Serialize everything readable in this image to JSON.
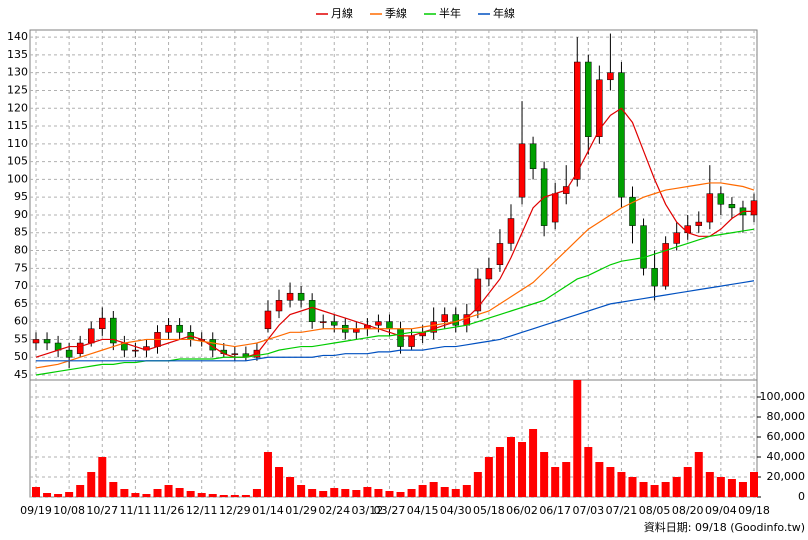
{
  "chart_data": [
    {
      "type": "candlestick",
      "up_color": "#ff0000",
      "down_color": "#00a000",
      "legend": "top",
      "grid": true,
      "ylim": [
        43.6,
        142
      ],
      "yticks": [
        45,
        50,
        55,
        60,
        65,
        70,
        75,
        80,
        85,
        90,
        95,
        100,
        105,
        110,
        115,
        120,
        125,
        130,
        135,
        140
      ],
      "open": [
        54,
        55,
        54,
        52,
        51,
        54,
        58,
        61,
        54,
        52,
        52,
        53,
        57,
        59,
        57,
        55,
        55,
        52,
        51,
        51,
        50,
        58,
        63,
        66,
        68,
        66,
        60,
        60,
        59,
        57,
        58,
        59,
        60,
        58,
        53,
        56,
        57,
        60,
        62,
        59,
        63,
        72,
        76,
        82,
        95,
        110,
        103,
        88,
        96,
        100,
        133,
        112,
        128,
        130,
        95,
        87,
        75,
        70,
        82,
        85,
        87,
        88,
        96,
        93,
        92,
        90
      ],
      "high": [
        57,
        57,
        56,
        54,
        56,
        60,
        64,
        63,
        56,
        54,
        55,
        59,
        61,
        61,
        59,
        57,
        57,
        54,
        53,
        53,
        54,
        66,
        69,
        71,
        70,
        68,
        62,
        62,
        61,
        60,
        61,
        62,
        62,
        60,
        58,
        59,
        64,
        64,
        64,
        65,
        75,
        78,
        86,
        93,
        122,
        112,
        105,
        99,
        104,
        140,
        135,
        132,
        141,
        133,
        98,
        89,
        80,
        84,
        88,
        90,
        91,
        104,
        98,
        95,
        94,
        96
      ],
      "low": [
        52,
        52,
        50,
        47,
        50,
        53,
        56,
        52,
        50,
        50,
        50,
        51,
        55,
        55,
        53,
        53,
        50,
        50,
        49,
        49,
        49,
        57,
        61,
        64,
        64,
        58,
        58,
        57,
        55,
        55,
        56,
        57,
        56,
        51,
        52,
        54,
        55,
        58,
        57,
        57,
        61,
        70,
        74,
        80,
        93,
        100,
        84,
        86,
        93,
        98,
        107,
        110,
        125,
        92,
        82,
        73,
        66,
        69,
        80,
        83,
        85,
        86,
        90,
        89,
        85,
        88
      ],
      "close": [
        55,
        54,
        52,
        50,
        54,
        58,
        61,
        54,
        52,
        52,
        53,
        57,
        59,
        57,
        55,
        55,
        52,
        51,
        51,
        50,
        52,
        63,
        66,
        68,
        66,
        60,
        60,
        59,
        57,
        58,
        59,
        60,
        58,
        53,
        56,
        57,
        60,
        62,
        59,
        62,
        72,
        75,
        82,
        89,
        110,
        103,
        87,
        96,
        98,
        133,
        112,
        128,
        130,
        95,
        87,
        75,
        70,
        82,
        85,
        87,
        88,
        96,
        93,
        92,
        90,
        94
      ],
      "series": [
        {
          "name": "月線",
          "color": "#e00000",
          "values": [
            50,
            51,
            52,
            53,
            53,
            54,
            55,
            55,
            54,
            53,
            52,
            53,
            54,
            55,
            56,
            55,
            53,
            51,
            50,
            50,
            51,
            55,
            59,
            62,
            63,
            64,
            63,
            62,
            61,
            60,
            59,
            58,
            57,
            56,
            56,
            57,
            58,
            59,
            60,
            61,
            64,
            68,
            72,
            78,
            85,
            92,
            95,
            96,
            97,
            102,
            108,
            114,
            118,
            120,
            116,
            108,
            100,
            93,
            88,
            85,
            84,
            84,
            86,
            89,
            91,
            91
          ]
        },
        {
          "name": "季線",
          "color": "#ff6a00",
          "values": [
            47,
            47.5,
            48,
            49,
            50,
            51,
            52,
            53,
            54,
            54.5,
            55,
            55,
            55,
            55,
            55,
            54.5,
            54,
            53.5,
            53,
            53.5,
            54,
            55,
            56,
            57,
            57,
            57.5,
            58,
            58,
            58,
            58,
            58,
            58,
            58,
            58,
            58,
            58.5,
            59,
            59.5,
            60,
            61,
            62,
            63,
            65,
            67,
            69,
            71,
            74,
            77,
            80,
            83,
            86,
            88,
            90,
            92,
            93.5,
            95,
            96,
            97,
            97.5,
            98,
            98.5,
            99,
            99,
            98.5,
            98,
            97
          ]
        },
        {
          "name": "半年",
          "color": "#00cc00",
          "values": [
            45,
            45.5,
            46,
            46.5,
            47,
            47.5,
            48,
            48,
            48.5,
            48.5,
            49,
            49,
            49,
            49.5,
            49.5,
            49.5,
            49.5,
            50,
            50,
            50,
            50.5,
            51,
            52,
            52.5,
            53,
            53,
            53.5,
            54,
            54.5,
            55,
            55.5,
            56,
            56,
            56.5,
            57,
            57,
            57.5,
            58,
            58.5,
            59,
            60,
            61,
            62,
            63,
            64,
            65,
            66,
            68,
            70,
            72,
            73,
            74.5,
            76,
            77,
            77.5,
            78,
            79,
            80,
            81,
            82,
            83,
            84,
            84.5,
            85,
            85.5,
            86
          ]
        },
        {
          "name": "年線",
          "color": "#0050c0",
          "values": [
            49,
            49,
            49,
            49,
            49,
            49,
            49,
            49,
            49,
            49,
            49,
            49,
            49,
            49,
            49,
            49,
            49,
            49,
            49,
            49,
            49.5,
            50,
            50,
            50,
            50,
            50,
            50.5,
            50.5,
            51,
            51,
            51,
            51.5,
            51.5,
            52,
            52,
            52,
            52.5,
            53,
            53,
            53.5,
            54,
            54.5,
            55,
            56,
            57,
            58,
            59,
            60,
            61,
            62,
            63,
            64,
            65,
            65.5,
            66,
            66.5,
            67,
            67.5,
            68,
            68.5,
            69,
            69.5,
            70,
            70.5,
            71,
            71.5
          ]
        }
      ]
    },
    {
      "type": "bar",
      "color": "#ff0000",
      "grid": true,
      "footnote": "資料日期: 09/18 (Goodinfo.tw)",
      "categories": [
        "09/19",
        null,
        null,
        "10/08",
        null,
        null,
        "10/27",
        null,
        null,
        "11/11",
        null,
        null,
        "11/26",
        null,
        null,
        "12/11",
        null,
        null,
        "12/29",
        null,
        null,
        "01/14",
        null,
        null,
        "01/29",
        null,
        null,
        "02/24",
        null,
        null,
        "03/12",
        null,
        "03/27",
        null,
        null,
        "04/15",
        null,
        null,
        "04/30",
        null,
        null,
        "05/18",
        null,
        null,
        "06/02",
        null,
        null,
        "06/17",
        null,
        null,
        "07/03",
        null,
        null,
        "07/21",
        null,
        null,
        "08/05",
        null,
        null,
        "08/20",
        null,
        null,
        "09/04",
        null,
        null,
        "09/18"
      ],
      "values": [
        10000,
        4000,
        3000,
        5000,
        12000,
        25000,
        40000,
        15000,
        8000,
        4000,
        3000,
        8000,
        12000,
        9000,
        6000,
        4000,
        3000,
        2000,
        2000,
        2000,
        8000,
        45000,
        30000,
        20000,
        12000,
        8000,
        6000,
        9000,
        8000,
        7000,
        10000,
        8000,
        6000,
        5000,
        8000,
        12000,
        15000,
        10000,
        8000,
        12000,
        25000,
        40000,
        50000,
        60000,
        55000,
        68000,
        45000,
        30000,
        35000,
        117000,
        50000,
        35000,
        30000,
        25000,
        20000,
        15000,
        12000,
        15000,
        20000,
        30000,
        45000,
        25000,
        20000,
        18000,
        15000,
        25000
      ],
      "ylim": [
        0,
        117000
      ],
      "yticks": [
        0,
        {
          "value": 20000,
          "label": "20,000"
        },
        {
          "value": 40000,
          "label": "40,000"
        },
        {
          "value": 60000,
          "label": "60,000"
        },
        {
          "value": 80000,
          "label": "80,000"
        },
        {
          "value": 100000,
          "label": "100,000"
        }
      ]
    }
  ]
}
